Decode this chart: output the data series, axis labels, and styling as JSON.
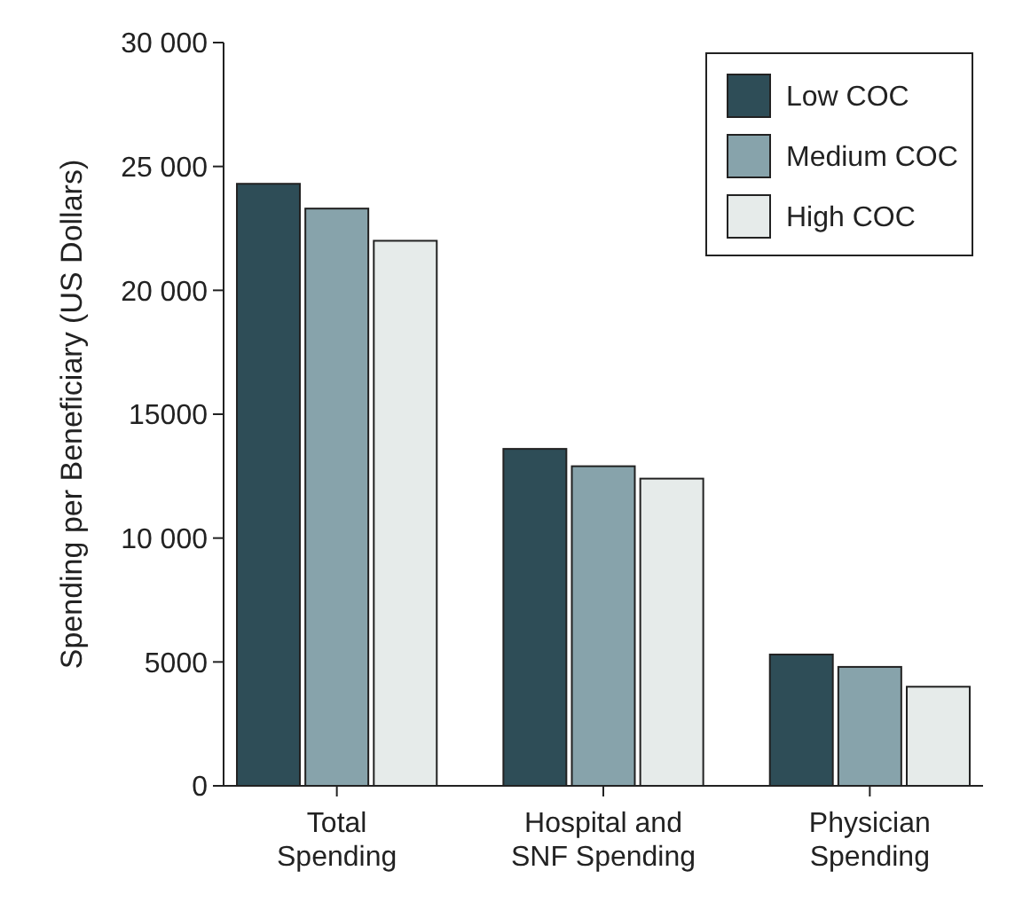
{
  "chart_data": {
    "type": "bar",
    "ylabel": "Spending per Beneficiary (US Dollars)",
    "categories": [
      "Total Spending",
      "Hospital and SNF Spending",
      "Physician Spending"
    ],
    "series": [
      {
        "name": "Low COC",
        "color": "#2e4d57",
        "values": [
          24300,
          13600,
          5300
        ]
      },
      {
        "name": "Medium COC",
        "color": "#87a3ab",
        "values": [
          23300,
          12900,
          4800
        ]
      },
      {
        "name": "High COC",
        "color": "#e6ebea",
        "values": [
          22000,
          12400,
          4000
        ]
      }
    ],
    "ylim": [
      0,
      30000
    ],
    "yticks": [
      0,
      5000,
      {
        "value": 10000,
        "label": "10 000"
      },
      {
        "value": 15000,
        "label": "15000"
      },
      {
        "value": 20000,
        "label": "20 000"
      },
      {
        "value": 25000,
        "label": "25 000"
      },
      {
        "value": 30000,
        "label": "30 000"
      }
    ],
    "grid": false,
    "legend": "top right"
  }
}
